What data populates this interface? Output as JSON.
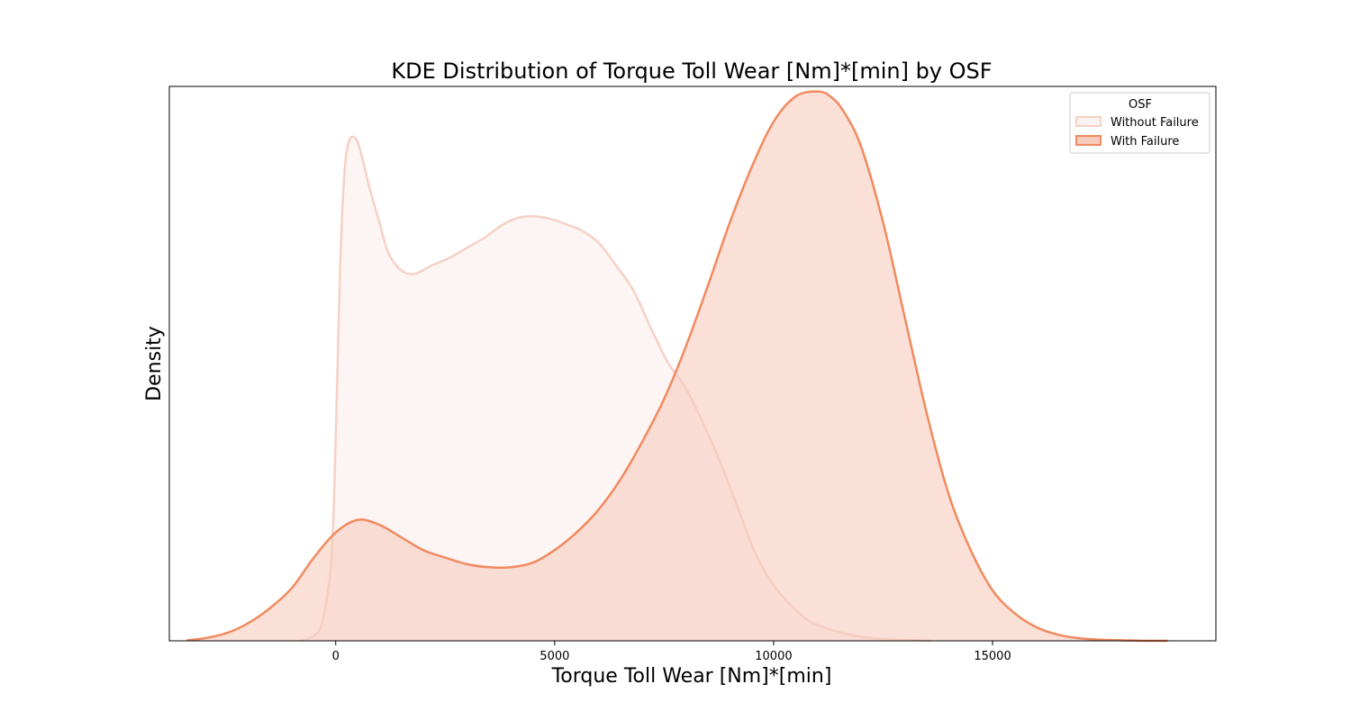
{
  "chart_data": {
    "type": "area",
    "title": "KDE Distribution of Torque Toll Wear [Nm]*[min] by OSF",
    "xlabel": "Torque Toll Wear [Nm]*[min]",
    "ylabel": "Density",
    "xlim": [
      -3800,
      20100
    ],
    "ylim": [
      0,
      1.1
    ],
    "xticks": [
      0,
      5000,
      10000,
      15000
    ],
    "xtick_labels": [
      "0",
      "5000",
      "10000",
      "15000"
    ],
    "show_yticks": false,
    "grid": false,
    "legend": {
      "title": "OSF",
      "placement": "top-right"
    },
    "series": [
      {
        "name": "Without Failure",
        "line_color": "#f6d1c5",
        "fill_color": "#fbf3f1",
        "fill_opacity": 0.8,
        "x": [
          -800,
          -500,
          -300,
          -100,
          0,
          100,
          200,
          300,
          400,
          500,
          600,
          800,
          1000,
          1200,
          1500,
          1800,
          2200,
          2600,
          3000,
          3400,
          3800,
          4200,
          4600,
          5000,
          5300,
          5600,
          6000,
          6400,
          6800,
          7200,
          7600,
          8000,
          8400,
          8800,
          9200,
          9600,
          10000,
          10400,
          10800,
          11200,
          11600,
          12000,
          12400,
          12800,
          13200,
          13600
        ],
        "y": [
          0.0,
          0.01,
          0.04,
          0.16,
          0.4,
          0.74,
          0.93,
          0.99,
          1.0,
          0.99,
          0.96,
          0.89,
          0.83,
          0.77,
          0.735,
          0.728,
          0.745,
          0.76,
          0.78,
          0.8,
          0.825,
          0.84,
          0.842,
          0.835,
          0.825,
          0.815,
          0.79,
          0.745,
          0.695,
          0.62,
          0.55,
          0.5,
          0.43,
          0.35,
          0.26,
          0.17,
          0.11,
          0.07,
          0.04,
          0.025,
          0.015,
          0.008,
          0.004,
          0.002,
          0.001,
          0.0
        ]
      },
      {
        "name": "With Failure",
        "line_color": "#f18a5f",
        "fill_color": "#f6cbbc",
        "fill_opacity": 0.6,
        "x": [
          -3400,
          -3000,
          -2500,
          -2000,
          -1500,
          -1000,
          -500,
          0,
          500,
          1000,
          1500,
          2000,
          2500,
          3000,
          3500,
          4000,
          4500,
          5000,
          5500,
          6000,
          6500,
          7000,
          7500,
          8000,
          8500,
          9000,
          9500,
          10000,
          10500,
          11000,
          11300,
          11600,
          12000,
          12500,
          13000,
          13500,
          14000,
          14500,
          15000,
          15500,
          16000,
          16500,
          17000,
          17500,
          18000,
          18500,
          19000
        ],
        "y": [
          0.001,
          0.005,
          0.015,
          0.035,
          0.065,
          0.105,
          0.165,
          0.215,
          0.24,
          0.23,
          0.205,
          0.18,
          0.165,
          0.152,
          0.146,
          0.146,
          0.155,
          0.18,
          0.215,
          0.26,
          0.32,
          0.395,
          0.48,
          0.585,
          0.705,
          0.83,
          0.94,
          1.03,
          1.08,
          1.09,
          1.08,
          1.05,
          0.98,
          0.83,
          0.64,
          0.45,
          0.29,
          0.18,
          0.1,
          0.055,
          0.027,
          0.012,
          0.005,
          0.002,
          0.001,
          0.0,
          0.0
        ]
      }
    ]
  }
}
